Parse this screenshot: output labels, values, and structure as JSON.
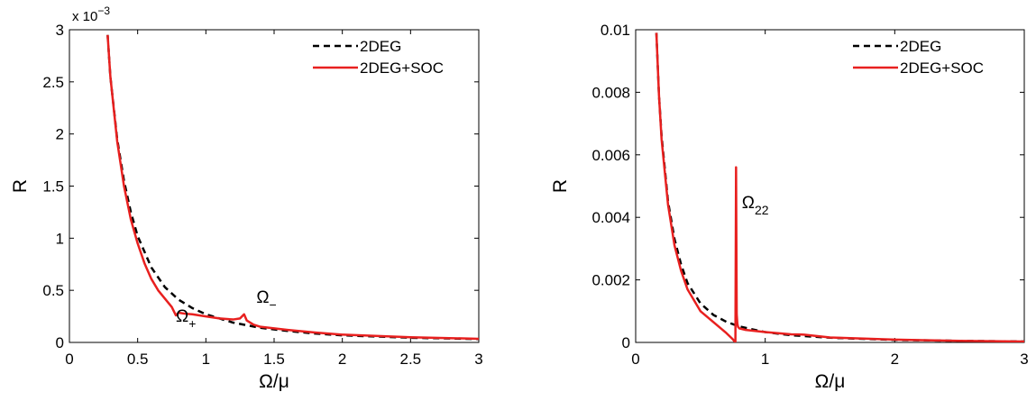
{
  "chart_data": [
    {
      "type": "line",
      "xlabel": "Ω/μ",
      "ylabel": "R",
      "xlim": [
        0,
        3
      ],
      "ylim": [
        0,
        3
      ],
      "y_exponent_label": "x 10",
      "y_exponent_power": "−3",
      "xticks": [
        "0",
        "0.5",
        "1",
        "1.5",
        "2",
        "2.5",
        "3"
      ],
      "yticks": [
        "0",
        "0.5",
        "1",
        "1.5",
        "2",
        "2.5",
        "3"
      ],
      "legend_position": "top-right",
      "grid": false,
      "series": [
        {
          "name": "2DEG",
          "color": "#000000",
          "style": "dashed",
          "x": [
            0.28,
            0.3,
            0.35,
            0.4,
            0.45,
            0.5,
            0.6,
            0.7,
            0.8,
            0.9,
            1.0,
            1.2,
            1.4,
            1.6,
            1.8,
            2.0,
            2.5,
            3.0
          ],
          "y": [
            2.95,
            2.55,
            1.95,
            1.55,
            1.25,
            1.02,
            0.72,
            0.53,
            0.41,
            0.33,
            0.27,
            0.19,
            0.14,
            0.11,
            0.085,
            0.068,
            0.045,
            0.032
          ]
        },
        {
          "name": "2DEG+SOC",
          "color": "#e8201f",
          "style": "solid",
          "x": [
            0.28,
            0.3,
            0.35,
            0.4,
            0.45,
            0.5,
            0.55,
            0.6,
            0.65,
            0.7,
            0.75,
            0.78,
            0.8,
            0.85,
            0.9,
            1.0,
            1.1,
            1.2,
            1.25,
            1.28,
            1.3,
            1.35,
            1.4,
            1.6,
            1.8,
            2.0,
            2.5,
            3.0
          ],
          "y": [
            2.95,
            2.55,
            1.93,
            1.5,
            1.18,
            0.95,
            0.76,
            0.61,
            0.5,
            0.42,
            0.34,
            0.26,
            0.285,
            0.275,
            0.27,
            0.25,
            0.23,
            0.22,
            0.23,
            0.27,
            0.21,
            0.17,
            0.15,
            0.12,
            0.095,
            0.075,
            0.05,
            0.035
          ]
        }
      ],
      "annotations": [
        {
          "symbol": "Ω",
          "sub": "+",
          "x": 0.78,
          "y": 0.2
        },
        {
          "symbol": "Ω",
          "sub": "−",
          "x": 1.37,
          "y": 0.38
        }
      ]
    },
    {
      "type": "line",
      "xlabel": "Ω/μ",
      "ylabel": "R",
      "xlim": [
        0,
        3
      ],
      "ylim": [
        0,
        0.01
      ],
      "xticks": [
        "0",
        "1",
        "2",
        "3"
      ],
      "yticks": [
        "0",
        "0.002",
        "0.004",
        "0.006",
        "0.008",
        "0.01"
      ],
      "legend_position": "top-right",
      "grid": false,
      "series": [
        {
          "name": "2DEG",
          "color": "#000000",
          "style": "dashed",
          "x": [
            0.16,
            0.18,
            0.2,
            0.25,
            0.3,
            0.35,
            0.4,
            0.5,
            0.6,
            0.7,
            0.8,
            1.0,
            1.2,
            1.5,
            2.0,
            2.5,
            3.0
          ],
          "y": [
            0.0099,
            0.0079,
            0.0066,
            0.0045,
            0.0033,
            0.0025,
            0.0019,
            0.00125,
            0.00088,
            0.00066,
            0.00051,
            0.00033,
            0.00023,
            0.00015,
            8e-05,
            5e-05,
            3e-05
          ]
        },
        {
          "name": "2DEG+SOC",
          "color": "#e8201f",
          "style": "solid",
          "x": [
            0.16,
            0.18,
            0.2,
            0.25,
            0.3,
            0.35,
            0.4,
            0.5,
            0.6,
            0.7,
            0.75,
            0.77,
            0.775,
            0.78,
            0.785,
            0.79,
            0.8,
            0.85,
            1.0,
            1.2,
            1.3,
            1.5,
            2.0,
            2.5,
            3.0
          ],
          "y": [
            0.0099,
            0.0079,
            0.0065,
            0.0044,
            0.0031,
            0.0023,
            0.0017,
            0.001,
            0.00065,
            0.0003,
            0.0001,
            0.0,
            0.0056,
            0.0009,
            0.0006,
            0.0005,
            0.00045,
            0.0004,
            0.00033,
            0.00026,
            0.00025,
            0.00016,
            9e-05,
            5e-05,
            3e-05
          ]
        }
      ],
      "annotations": [
        {
          "symbol": "Ω",
          "sub": "22",
          "x": 0.82,
          "y": 0.0043
        }
      ]
    }
  ]
}
